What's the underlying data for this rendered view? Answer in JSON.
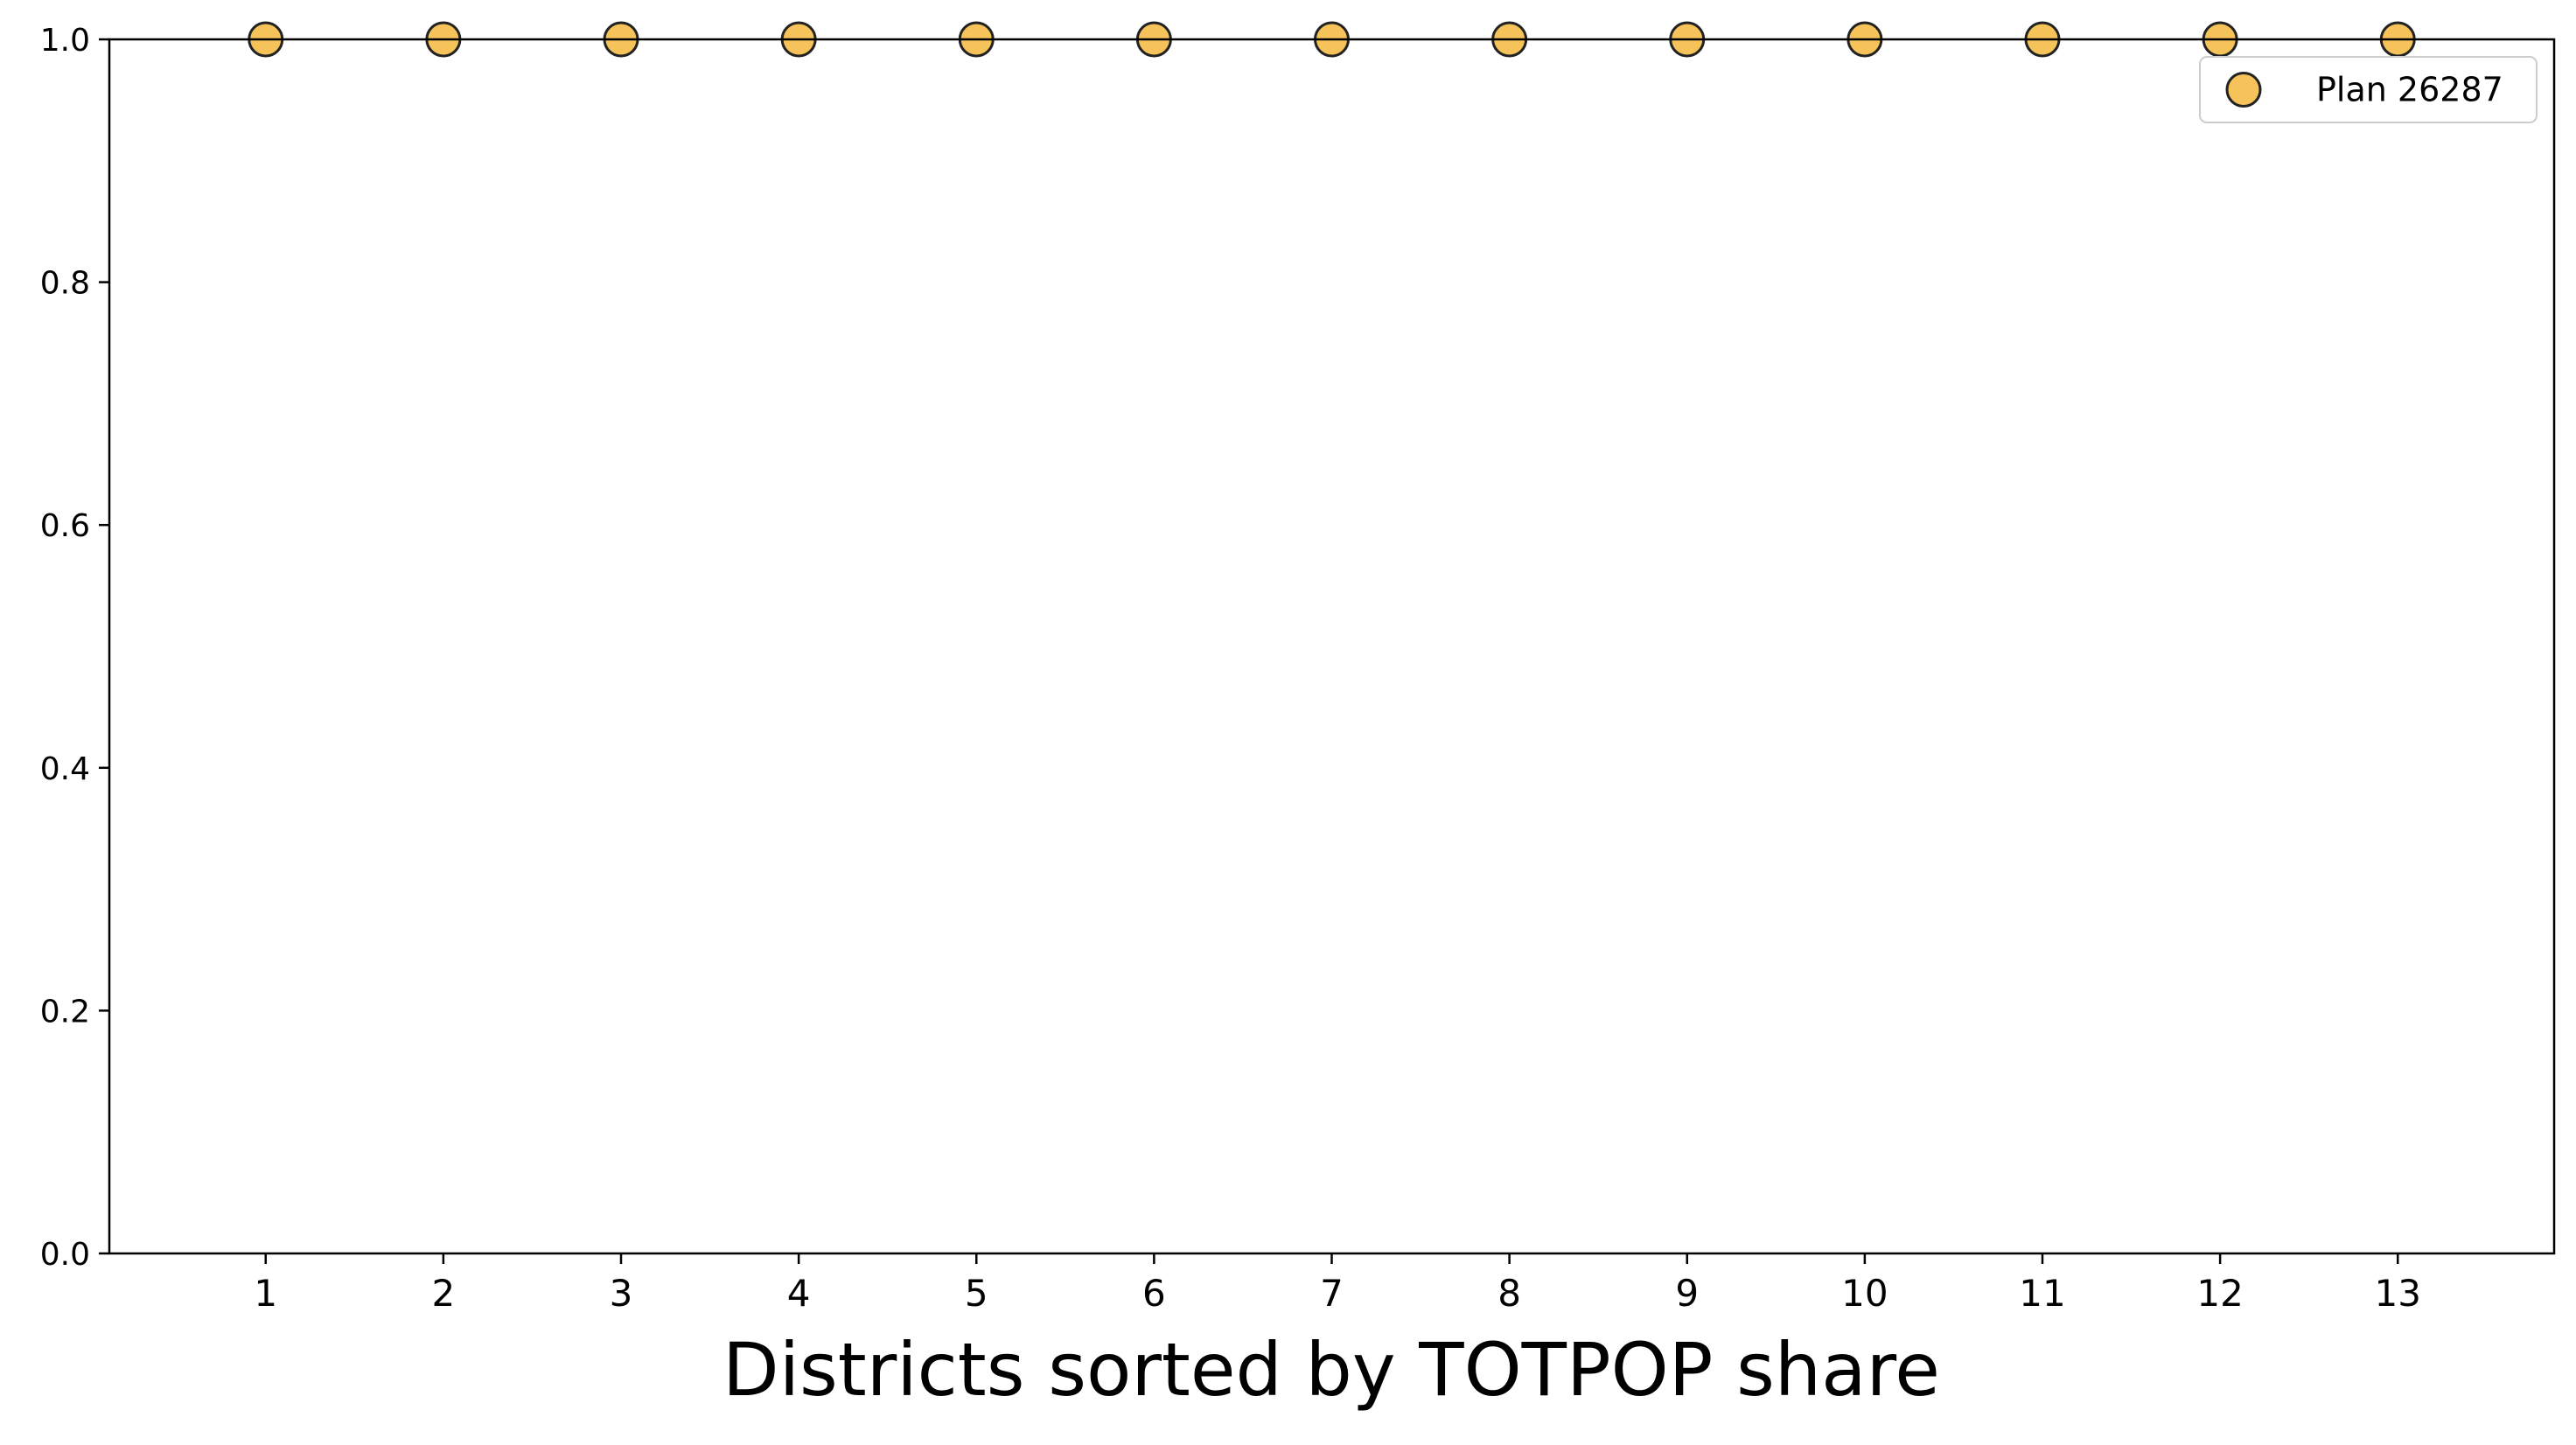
{
  "chart_data": {
    "type": "scatter",
    "title": "",
    "xlabel": "Districts sorted by TOTPOP share",
    "ylabel": "",
    "x": [
      1,
      2,
      3,
      4,
      5,
      6,
      7,
      8,
      9,
      10,
      11,
      12,
      13
    ],
    "xlim": [
      0.12,
      13.88
    ],
    "ylim": [
      0.0,
      1.0
    ],
    "xticks": [
      "1",
      "2",
      "3",
      "4",
      "5",
      "6",
      "7",
      "8",
      "9",
      "10",
      "11",
      "12",
      "13"
    ],
    "yticks": [
      "0.0",
      "0.2",
      "0.4",
      "0.6",
      "0.8",
      "1.0"
    ],
    "series": [
      {
        "name": "Plan 26287",
        "color": "#f5c35a",
        "edge_color": "#222222",
        "values": [
          1.0,
          1.0,
          1.0,
          1.0,
          1.0,
          1.0,
          1.0,
          1.0,
          1.0,
          1.0,
          1.0,
          1.0,
          1.0
        ]
      }
    ],
    "grid": false,
    "legend_position": "top-right"
  }
}
